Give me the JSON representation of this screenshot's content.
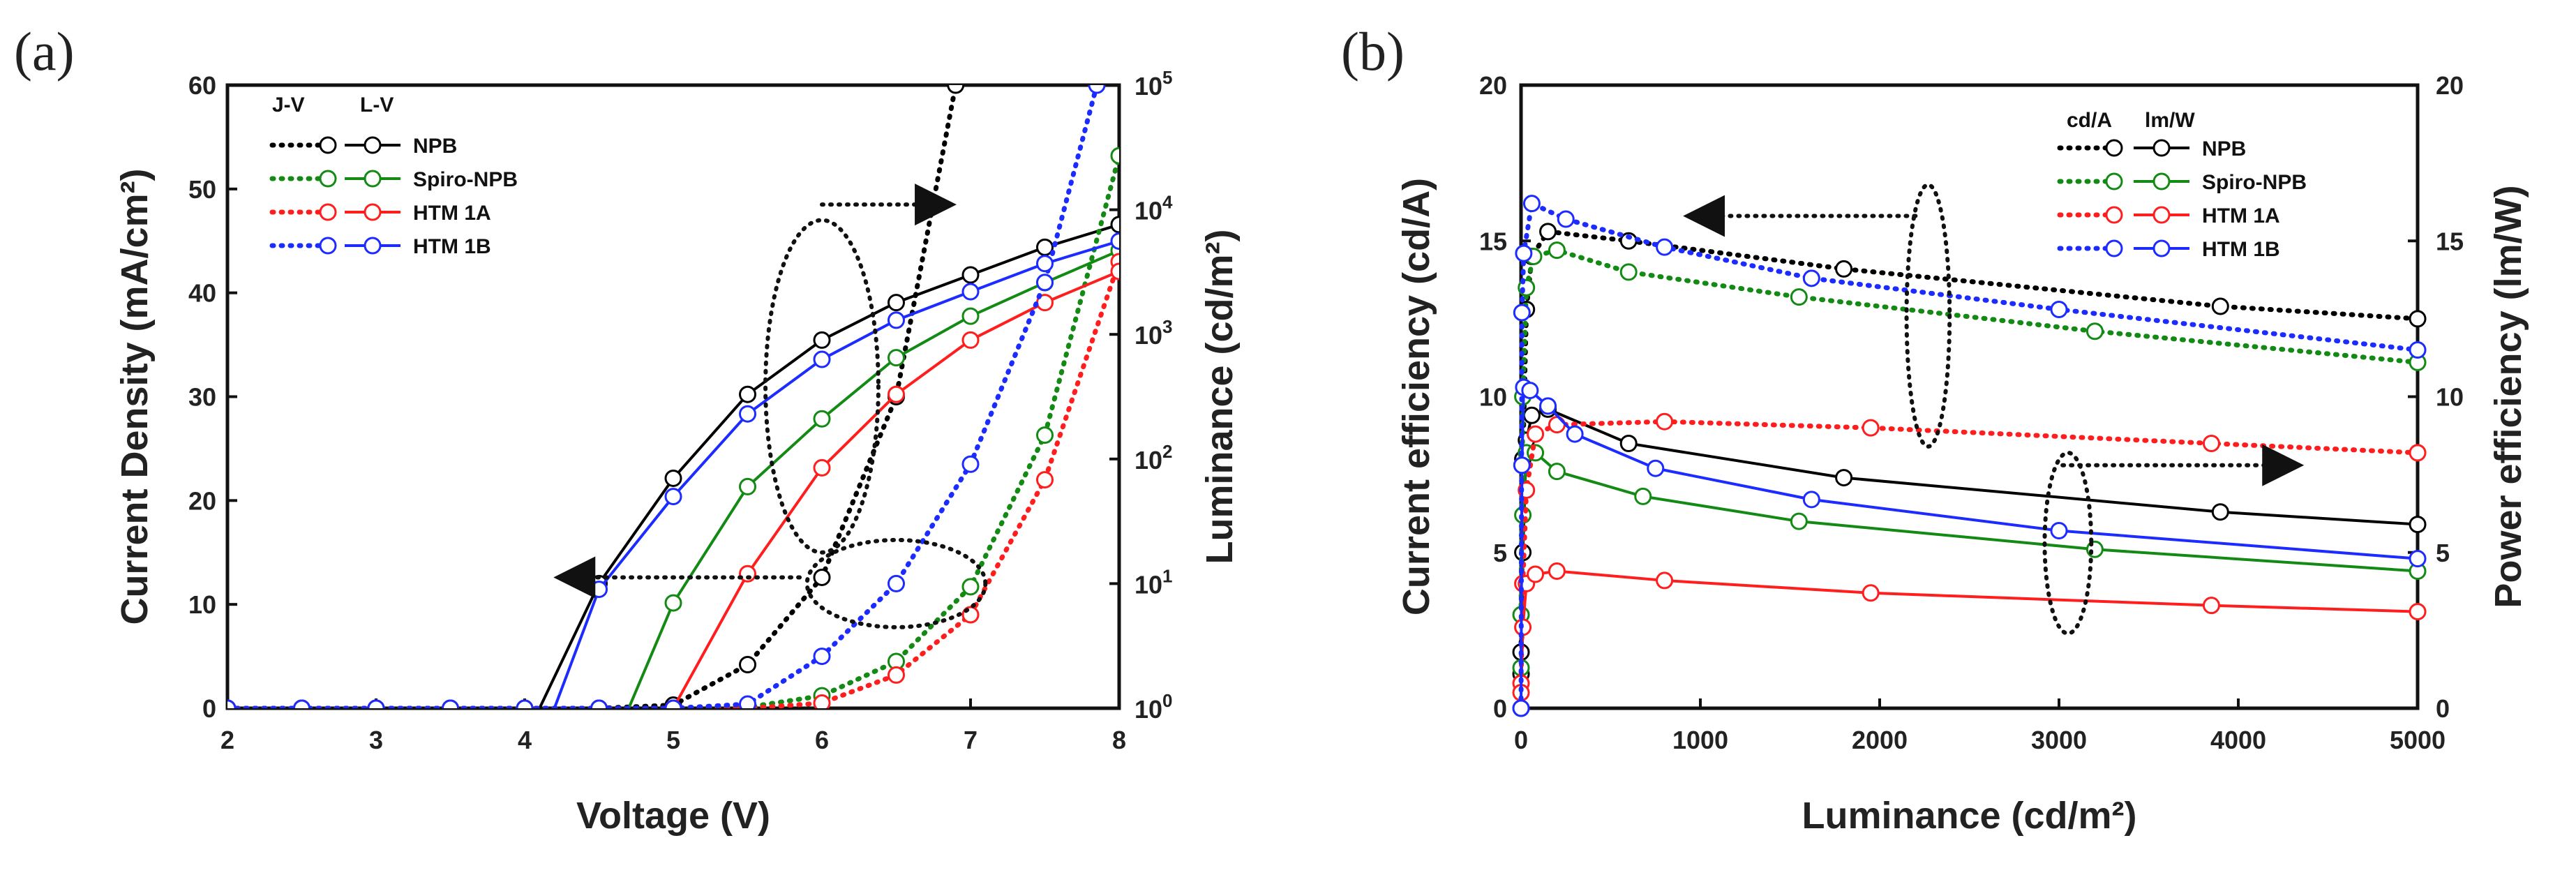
{
  "chart_data": [
    {
      "panel": "(a)",
      "type": "line",
      "xlabel": "Voltage (V)",
      "ylabel": "Current Density (mA/cm²)",
      "y2label": "Luminance (cd/m²)",
      "xlim": [
        2,
        8
      ],
      "ylim": [
        0,
        60
      ],
      "y2lim": [
        1,
        100000
      ],
      "y2scale": "log",
      "xticks": [
        "2",
        "3",
        "4",
        "5",
        "6",
        "7",
        "8"
      ],
      "yticks": [
        "0",
        "10",
        "20",
        "30",
        "40",
        "50",
        "60"
      ],
      "y2ticks": [
        {
          "base": "10",
          "exp": "0"
        },
        {
          "base": "10",
          "exp": "1"
        },
        {
          "base": "10",
          "exp": "2"
        },
        {
          "base": "10",
          "exp": "3"
        },
        {
          "base": "10",
          "exp": "4"
        },
        {
          "base": "10",
          "exp": "5"
        }
      ],
      "legend_headers": [
        "J-V",
        "L-V"
      ],
      "legend_position": "top-left",
      "series": [
        {
          "name": "NPB",
          "color": "#000000",
          "jv": [
            [
              2,
              0
            ],
            [
              2.5,
              0
            ],
            [
              3,
              0
            ],
            [
              3.5,
              0
            ],
            [
              4,
              0
            ],
            [
              4.5,
              0
            ],
            [
              5,
              0.3
            ],
            [
              5.5,
              4.2
            ],
            [
              6,
              12.6
            ],
            [
              6.5,
              30
            ],
            [
              6.9,
              60
            ]
          ],
          "lv": [
            [
              4.1,
              1
            ],
            [
              4.5,
              10
            ],
            [
              5,
              70
            ],
            [
              5.5,
              330
            ],
            [
              6,
              900
            ],
            [
              6.5,
              1800
            ],
            [
              7,
              3000
            ],
            [
              7.5,
              5000
            ],
            [
              8,
              7600
            ]
          ]
        },
        {
          "name": "Spiro-NPB",
          "color": "#138a14",
          "jv": [
            [
              2,
              0
            ],
            [
              2.5,
              0
            ],
            [
              3,
              0
            ],
            [
              3.5,
              0
            ],
            [
              4,
              0
            ],
            [
              4.5,
              0
            ],
            [
              5,
              0
            ],
            [
              5.5,
              0.1
            ],
            [
              6,
              1.2
            ],
            [
              6.5,
              4.5
            ],
            [
              7,
              11.7
            ],
            [
              7.5,
              26.3
            ],
            [
              8,
              53.2
            ]
          ],
          "lv": [
            [
              4.7,
              1
            ],
            [
              5,
              7
            ],
            [
              5.5,
              60
            ],
            [
              6,
              210
            ],
            [
              6.5,
              650
            ],
            [
              7,
              1400
            ],
            [
              7.5,
              2600
            ],
            [
              8,
              4700
            ]
          ]
        },
        {
          "name": "HTM 1A",
          "color": "#ff1d1d",
          "jv": [
            [
              2,
              0
            ],
            [
              2.5,
              0
            ],
            [
              3,
              0
            ],
            [
              3.5,
              0
            ],
            [
              4,
              0
            ],
            [
              4.5,
              0
            ],
            [
              5,
              0
            ],
            [
              5.5,
              0
            ],
            [
              6,
              0.5
            ],
            [
              6.5,
              3.2
            ],
            [
              7,
              9
            ],
            [
              7.5,
              22
            ],
            [
              8,
              43
            ]
          ],
          "lv": [
            [
              5,
              1
            ],
            [
              5.5,
              12
            ],
            [
              6,
              85
            ],
            [
              6.5,
              330
            ],
            [
              7,
              900
            ],
            [
              7.5,
              1800
            ],
            [
              8,
              3200
            ]
          ]
        },
        {
          "name": "HTM 1B",
          "color": "#1c2bff",
          "jv": [
            [
              2,
              0
            ],
            [
              2.5,
              0
            ],
            [
              3,
              0
            ],
            [
              3.5,
              0
            ],
            [
              4,
              0
            ],
            [
              4.5,
              0
            ],
            [
              5,
              0
            ],
            [
              5.5,
              0.4
            ],
            [
              6,
              5
            ],
            [
              6.5,
              12
            ],
            [
              7,
              23.5
            ],
            [
              7.5,
              41
            ],
            [
              7.85,
              60
            ]
          ],
          "lv": [
            [
              4.2,
              1
            ],
            [
              4.5,
              9
            ],
            [
              5,
              50
            ],
            [
              5.5,
              230
            ],
            [
              6,
              630
            ],
            [
              6.5,
              1300
            ],
            [
              7,
              2200
            ],
            [
              7.5,
              3700
            ],
            [
              8,
              5600
            ]
          ]
        }
      ],
      "annotations": [
        {
          "type": "ellipse",
          "cx": 6.0,
          "cy": 31,
          "rx": 0.38,
          "ry": 16
        },
        {
          "type": "arrow",
          "x1": 6.0,
          "y1": 48.5,
          "x2": 6.85,
          "y2": 48.5
        },
        {
          "type": "ellipse",
          "cx": 6.5,
          "cy": 12,
          "rx": 0.6,
          "ry": 4.2
        },
        {
          "type": "arrow",
          "x1": 5.85,
          "y1": 12.6,
          "x2": 4.25,
          "y2": 12.6
        }
      ]
    },
    {
      "panel": "(b)",
      "type": "line",
      "xlabel": "Luminance (cd/m²)",
      "ylabel": "Current efficiency (cd/A)",
      "y2label": "Power efficiency (lm/W)",
      "xlim": [
        0,
        5000
      ],
      "ylim": [
        0,
        20
      ],
      "y2lim": [
        0,
        20
      ],
      "xticks": [
        "0",
        "1000",
        "2000",
        "3000",
        "4000",
        "5000"
      ],
      "yticks": [
        "0",
        "5",
        "10",
        "15",
        "20"
      ],
      "y2ticks": [
        "0",
        "5",
        "10",
        "15",
        "20"
      ],
      "legend_headers": [
        "cd/A",
        "lm/W"
      ],
      "legend_position": "top-right",
      "series": [
        {
          "name": "NPB",
          "color": "#000000",
          "cd": [
            [
              0,
              1.8
            ],
            [
              10,
              8
            ],
            [
              30,
              12.8
            ],
            [
              60,
              14.5
            ],
            [
              150,
              15.3
            ],
            [
              600,
              15
            ],
            [
              1800,
              14.1
            ],
            [
              3900,
              12.9
            ],
            [
              5000,
              12.5
            ]
          ],
          "lm": [
            [
              0,
              1.1
            ],
            [
              10,
              5
            ],
            [
              30,
              8.6
            ],
            [
              60,
              9.4
            ],
            [
              150,
              9.6
            ],
            [
              600,
              8.5
            ],
            [
              1800,
              7.4
            ],
            [
              3900,
              6.3
            ],
            [
              5000,
              5.9
            ]
          ]
        },
        {
          "name": "Spiro-NPB",
          "color": "#138a14",
          "cd": [
            [
              0,
              3
            ],
            [
              10,
              10
            ],
            [
              30,
              13.5
            ],
            [
              70,
              14.5
            ],
            [
              200,
              14.7
            ],
            [
              600,
              14
            ],
            [
              1550,
              13.2
            ],
            [
              3200,
              12.1
            ],
            [
              5000,
              11.1
            ]
          ],
          "lm": [
            [
              0,
              1.3
            ],
            [
              10,
              6.2
            ],
            [
              30,
              8.2
            ],
            [
              80,
              8.2
            ],
            [
              200,
              7.6
            ],
            [
              680,
              6.8
            ],
            [
              1550,
              6
            ],
            [
              3200,
              5.1
            ],
            [
              5000,
              4.4
            ]
          ]
        },
        {
          "name": "HTM 1A",
          "color": "#ff1d1d",
          "cd": [
            [
              0,
              0.8
            ],
            [
              10,
              4
            ],
            [
              30,
              7
            ],
            [
              80,
              8.8
            ],
            [
              200,
              9.1
            ],
            [
              800,
              9.2
            ],
            [
              1950,
              9
            ],
            [
              3850,
              8.5
            ],
            [
              5000,
              8.2
            ]
          ],
          "lm": [
            [
              0,
              0.5
            ],
            [
              10,
              2.6
            ],
            [
              30,
              4
            ],
            [
              80,
              4.3
            ],
            [
              200,
              4.4
            ],
            [
              800,
              4.1
            ],
            [
              1950,
              3.7
            ],
            [
              3850,
              3.3
            ],
            [
              5000,
              3.1
            ]
          ]
        },
        {
          "name": "HTM 1B",
          "color": "#1c2bff",
          "cd": [
            [
              0,
              0
            ],
            [
              5,
              12.7
            ],
            [
              15,
              14.6
            ],
            [
              60,
              16.2
            ],
            [
              250,
              15.7
            ],
            [
              800,
              14.8
            ],
            [
              1620,
              13.8
            ],
            [
              3000,
              12.8
            ],
            [
              5000,
              11.5
            ]
          ],
          "lm": [
            [
              0,
              0
            ],
            [
              5,
              7.8
            ],
            [
              15,
              10.3
            ],
            [
              50,
              10.2
            ],
            [
              150,
              9.7
            ],
            [
              300,
              8.8
            ],
            [
              750,
              7.7
            ],
            [
              1620,
              6.7
            ],
            [
              3000,
              5.7
            ],
            [
              5000,
              4.8
            ]
          ]
        }
      ],
      "annotations": [
        {
          "type": "ellipse",
          "cx": 2270,
          "cy": 12.6,
          "rx": 120,
          "ry": 4.2
        },
        {
          "type": "arrow",
          "x1": 2200,
          "y1": 15.8,
          "x2": 950,
          "y2": 15.8
        },
        {
          "type": "ellipse",
          "cx": 3050,
          "cy": 5.3,
          "rx": 130,
          "ry": 2.9
        },
        {
          "type": "arrow",
          "x1": 3020,
          "y1": 7.8,
          "x2": 4320,
          "y2": 7.8
        }
      ]
    }
  ]
}
